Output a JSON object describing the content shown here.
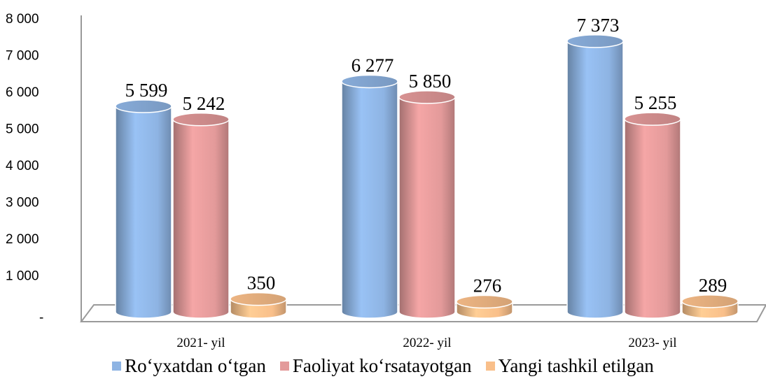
{
  "chart_data": {
    "type": "bar",
    "categories": [
      "2021- yil",
      "2022- yil",
      "2023- yil"
    ],
    "series": [
      {
        "name": "Ro‘yxatdan o‘tgan",
        "values": [
          5599,
          6277,
          7373
        ],
        "labels": [
          "5 599",
          "6 277",
          "7 373"
        ],
        "color": "#8EB4E3"
      },
      {
        "name": "Faoliyat ko‘rsatayotgan",
        "values": [
          5242,
          5850,
          5255
        ],
        "labels": [
          "5 242",
          "5 850",
          "5 255"
        ],
        "color": "#E39A9A"
      },
      {
        "name": "Yangi tashkil etilgan",
        "values": [
          350,
          276,
          289
        ],
        "labels": [
          "350",
          "276",
          "289"
        ],
        "color": "#F9BF8A"
      }
    ],
    "yticks": [
      {
        "value": 0,
        "label": "-"
      },
      {
        "value": 1000,
        "label": "1 000"
      },
      {
        "value": 2000,
        "label": "2 000"
      },
      {
        "value": 3000,
        "label": "3 000"
      },
      {
        "value": 4000,
        "label": "4 000"
      },
      {
        "value": 5000,
        "label": "5 000"
      },
      {
        "value": 6000,
        "label": "6 000"
      },
      {
        "value": 7000,
        "label": "7 000"
      },
      {
        "value": 8000,
        "label": "8 000"
      }
    ],
    "ylim": [
      0,
      8000
    ],
    "title": "",
    "xlabel": "",
    "ylabel": "",
    "grid": false,
    "legend_position": "bottom",
    "style": "3d-cylinder"
  }
}
